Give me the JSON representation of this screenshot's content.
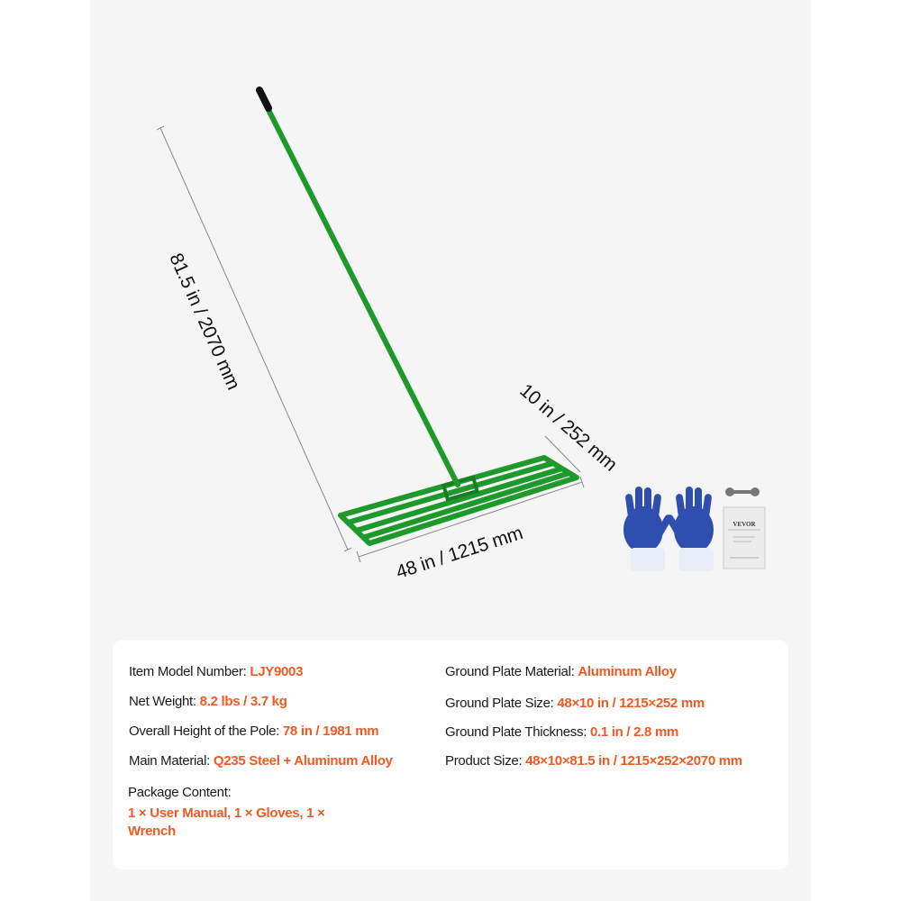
{
  "dimensions": {
    "height": "81.5 in / 2070 mm",
    "width": "48 in / 1215 mm",
    "depth": "10 in / 252 mm"
  },
  "manual_brand": "VEVOR",
  "colors": {
    "rake_green": "#1e9a2c",
    "accent_orange": "#f05a22",
    "glove_blue": "#2f4fb0"
  },
  "specs": {
    "left": [
      {
        "label": "Item Model Number: ",
        "value": "LJY9003"
      },
      {
        "label": "Net Weight: ",
        "value": "8.2 lbs / 3.7 kg"
      },
      {
        "label": "Overall Height of the Pole: ",
        "value": "78 in / 1981 mm"
      },
      {
        "label": "Main Material: ",
        "value": "Q235 Steel + Aluminum Alloy"
      }
    ],
    "right": [
      {
        "label": "Ground Plate Material: ",
        "value": "Aluminum Alloy"
      },
      {
        "label": "Ground Plate Size: ",
        "value": "48×10 in / 1215×252 mm"
      },
      {
        "label": "Ground Plate Thickness: ",
        "value": "0.1 in / 2.8 mm"
      },
      {
        "label": "Product Size: ",
        "value": "48×10×81.5 in / 1215×252×2070 mm"
      }
    ],
    "package": {
      "label": "Package Content:",
      "value": "1 × User Manual, 1 × Gloves, 1 × Wrench"
    }
  }
}
